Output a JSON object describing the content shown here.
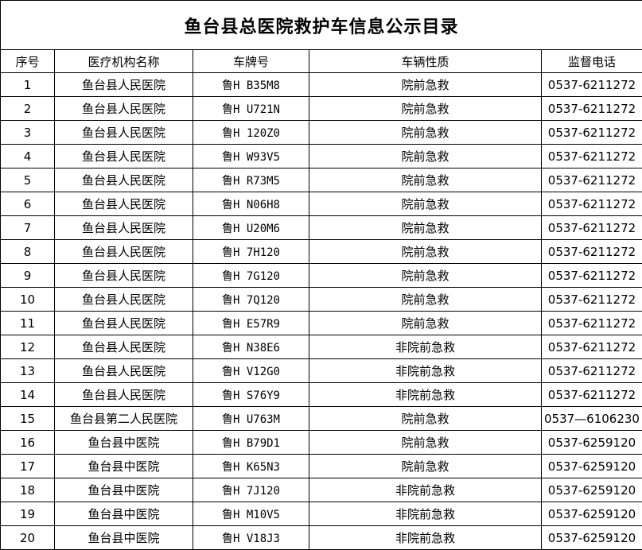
{
  "title": "鱼台县总医院救护车信息公示目录",
  "headers": [
    "序号",
    "医疗机构名称",
    "车牌号",
    "车辆性质",
    "监督电话"
  ],
  "rows": [
    [
      "1",
      "鱼台县人民医院",
      "鲁H B35M8",
      "院前急救",
      "0537-6211272"
    ],
    [
      "2",
      "鱼台县人民医院",
      "鲁H U721N",
      "院前急救",
      "0537-6211272"
    ],
    [
      "3",
      "鱼台县人民医院",
      "鲁H 120Z0",
      "院前急救",
      "0537-6211272"
    ],
    [
      "4",
      "鱼台县人民医院",
      "鲁H W93V5",
      "院前急救",
      "0537-6211272"
    ],
    [
      "5",
      "鱼台县人民医院",
      "鲁H R73M5",
      "院前急救",
      "0537-6211272"
    ],
    [
      "6",
      "鱼台县人民医院",
      "鲁H N06H8",
      "院前急救",
      "0537-6211272"
    ],
    [
      "7",
      "鱼台县人民医院",
      "鲁H U20M6",
      "院前急救",
      "0537-6211272"
    ],
    [
      "8",
      "鱼台县人民医院",
      "鲁H 7H120",
      "院前急救",
      "0537-6211272"
    ],
    [
      "9",
      "鱼台县人民医院",
      "鲁H 7G120",
      "院前急救",
      "0537-6211272"
    ],
    [
      "10",
      "鱼台县人民医院",
      "鲁H 7Q120",
      "院前急救",
      "0537-6211272"
    ],
    [
      "11",
      "鱼台县人民医院",
      "鲁H E57R9",
      "院前急救",
      "0537-6211272"
    ],
    [
      "12",
      "鱼台县人民医院",
      "鲁H N38E6",
      "非院前急救",
      "0537-6211272"
    ],
    [
      "13",
      "鱼台县人民医院",
      "鲁H V12G0",
      "非院前急救",
      "0537-6211272"
    ],
    [
      "14",
      "鱼台县人民医院",
      "鲁H S76Y9",
      "非院前急救",
      "0537-6211272"
    ],
    [
      "15",
      "鱼台县第二人民医院",
      "鲁H U763M",
      "院前急救",
      "0537—6106230"
    ],
    [
      "16",
      "鱼台县中医院",
      "鲁H B79D1",
      "院前急救",
      "0537-6259120"
    ],
    [
      "17",
      "鱼台县中医院",
      "鲁H K65N3",
      "院前急救",
      "0537-6259120"
    ],
    [
      "18",
      "鱼台县中医院",
      "鲁H 7J120",
      "非院前急救",
      "0537-6259120"
    ],
    [
      "19",
      "鱼台县中医院",
      "鲁H M10V5",
      "非院前急救",
      "0537-6259120"
    ],
    [
      "20",
      "鱼台县中医院",
      "鲁H V18J3",
      "非院前急救",
      "0537-6259120"
    ]
  ]
}
